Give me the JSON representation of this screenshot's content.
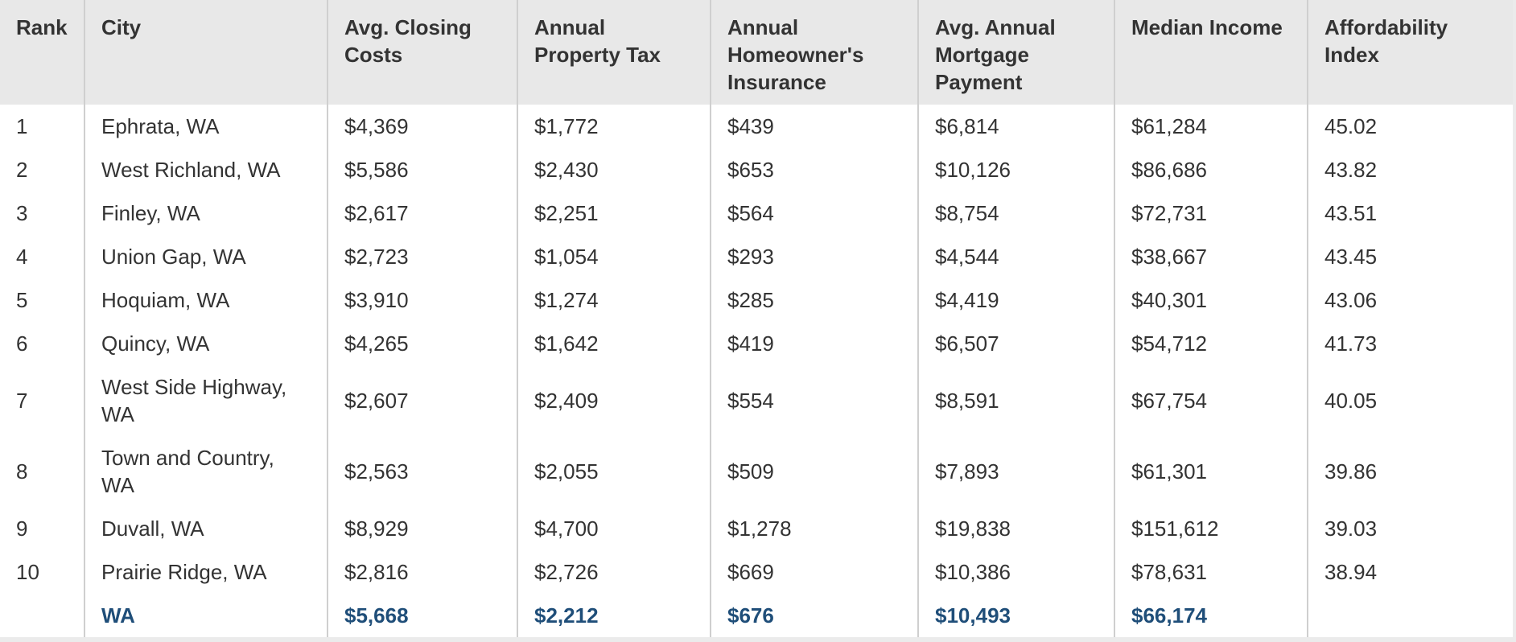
{
  "table": {
    "headers": [
      "Rank",
      "City",
      "Avg. Closing Costs",
      "Annual Property Tax",
      "Annual Homeowner's Insurance",
      "Avg. Annual Mortgage Payment",
      "Median Income",
      "Affordability Index"
    ],
    "rows": [
      [
        "1",
        "Ephrata, WA",
        "$4,369",
        "$1,772",
        "$439",
        "$6,814",
        "$61,284",
        "45.02"
      ],
      [
        "2",
        "West Richland, WA",
        "$5,586",
        "$2,430",
        "$653",
        "$10,126",
        "$86,686",
        "43.82"
      ],
      [
        "3",
        "Finley, WA",
        "$2,617",
        "$2,251",
        "$564",
        "$8,754",
        "$72,731",
        "43.51"
      ],
      [
        "4",
        "Union Gap, WA",
        "$2,723",
        "$1,054",
        "$293",
        "$4,544",
        "$38,667",
        "43.45"
      ],
      [
        "5",
        "Hoquiam, WA",
        "$3,910",
        "$1,274",
        "$285",
        "$4,419",
        "$40,301",
        "43.06"
      ],
      [
        "6",
        "Quincy, WA",
        "$4,265",
        "$1,642",
        "$419",
        "$6,507",
        "$54,712",
        "41.73"
      ],
      [
        "7",
        "West Side Highway, WA",
        "$2,607",
        "$2,409",
        "$554",
        "$8,591",
        "$67,754",
        "40.05"
      ],
      [
        "8",
        "Town and Country, WA",
        "$2,563",
        "$2,055",
        "$509",
        "$7,893",
        "$61,301",
        "39.86"
      ],
      [
        "9",
        "Duvall, WA",
        "$8,929",
        "$4,700",
        "$1,278",
        "$19,838",
        "$151,612",
        "39.03"
      ],
      [
        "10",
        "Prairie Ridge, WA",
        "$2,816",
        "$2,726",
        "$669",
        "$10,386",
        "$78,631",
        "38.94"
      ]
    ],
    "total_row": [
      "",
      "WA",
      "$5,668",
      "$2,212",
      "$676",
      "$10,493",
      "$66,174",
      ""
    ]
  },
  "colors": {
    "header_bg": "#e8e8e8",
    "total_text": "#1f4e79",
    "grid_line": "#cfcfcf"
  }
}
